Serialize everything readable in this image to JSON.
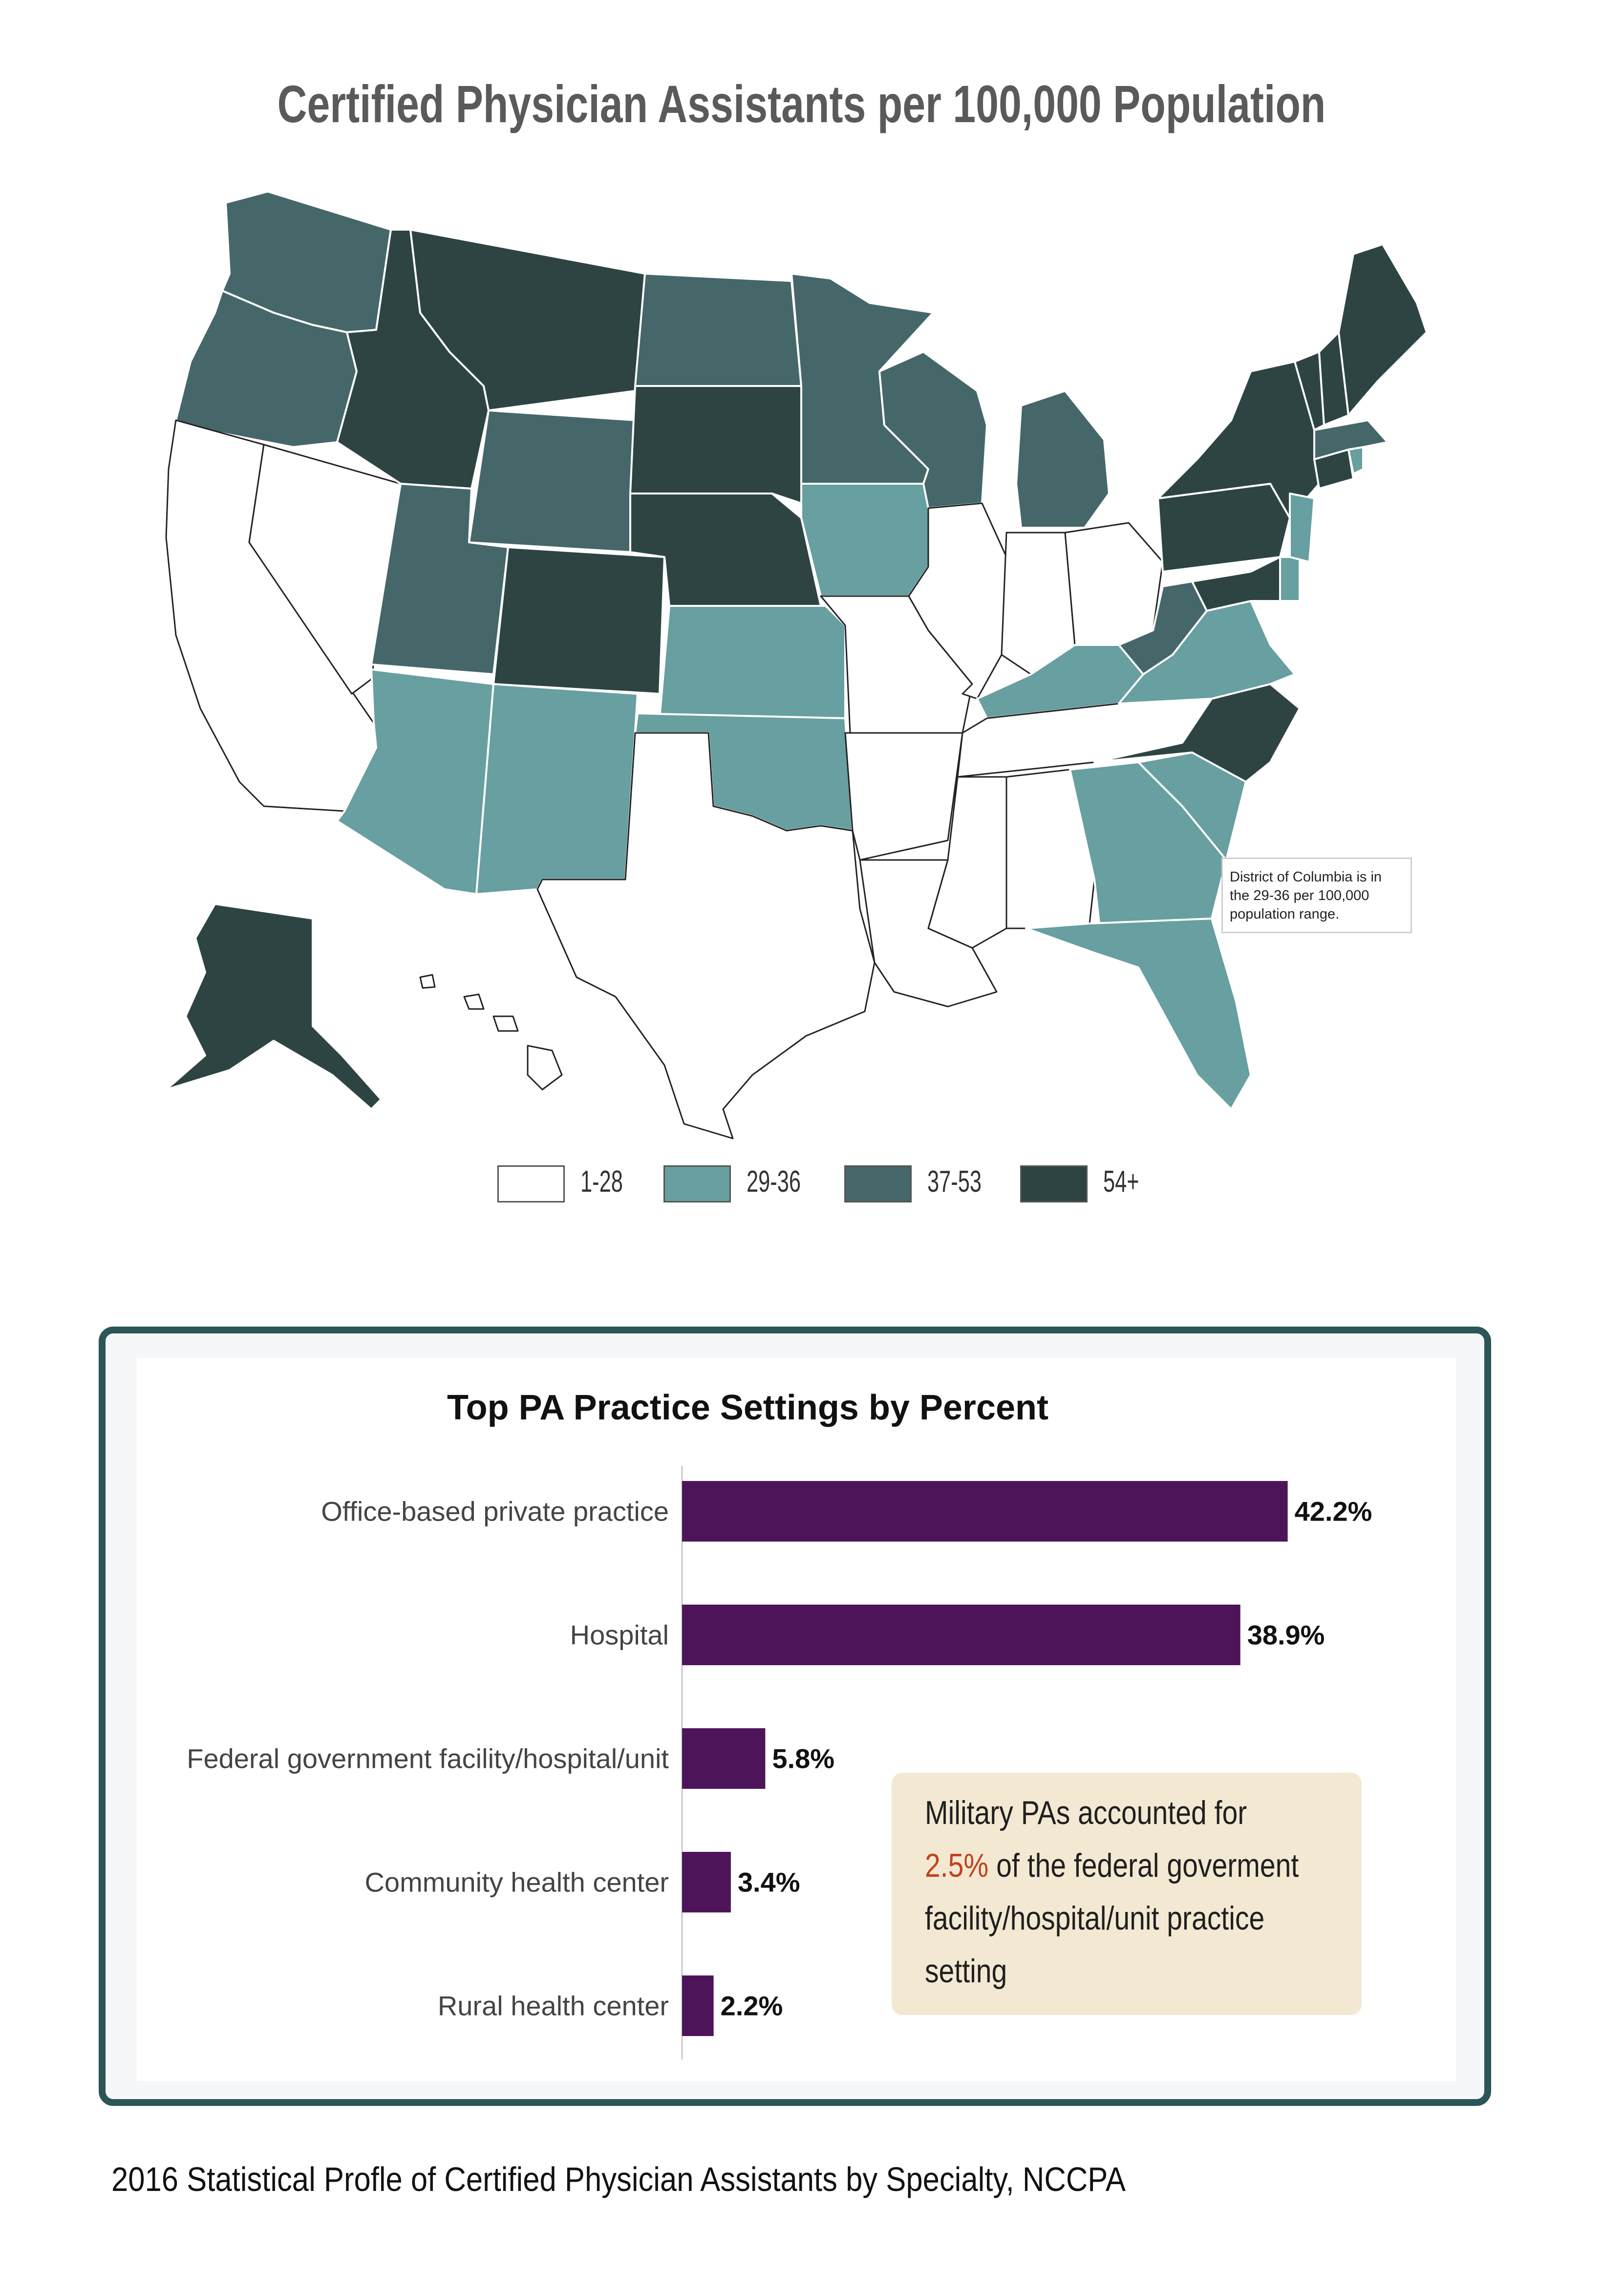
{
  "map": {
    "title": "Certified Physician Assistants per 100,000 Population",
    "dc_note": "District of Columbia is in the 29-36 per 100,000 population range.",
    "legend": [
      {
        "label": "1-28",
        "color": "#ffffff"
      },
      {
        "label": "29-36",
        "color": "#689fa0"
      },
      {
        "label": "37-53",
        "color": "#466769"
      },
      {
        "label": "54+",
        "color": "#2d4443"
      }
    ],
    "state_ranges": {
      "1-28": [
        "California",
        "Nevada",
        "Texas",
        "Missouri",
        "Arkansas",
        "Louisiana",
        "Mississippi",
        "Alabama",
        "Tennessee",
        "Illinois",
        "Indiana",
        "Ohio",
        "Hawaii"
      ],
      "29-36": [
        "Arizona",
        "New Mexico",
        "Kansas",
        "Oklahoma",
        "Iowa",
        "Kentucky",
        "Virginia",
        "Georgia",
        "South Carolina",
        "Florida",
        "New Jersey",
        "Delaware",
        "Rhode Island",
        "District of Columbia"
      ],
      "37-53": [
        "Washington",
        "Oregon",
        "Utah",
        "Wyoming",
        "North Dakota",
        "Minnesota",
        "Wisconsin",
        "Michigan",
        "West Virginia",
        "Massachusetts"
      ],
      "54+": [
        "Idaho",
        "Montana",
        "Colorado",
        "South Dakota",
        "Nebraska",
        "Alaska",
        "New York",
        "Pennsylvania",
        "Maryland",
        "North Carolina",
        "Maine",
        "New Hampshire",
        "Vermont",
        "Connecticut"
      ]
    }
  },
  "chart_data": {
    "type": "bar",
    "orientation": "horizontal",
    "title": "Top PA Practice Settings by Percent",
    "categories": [
      "Office-based private practice",
      "Hospital",
      "Federal government facility/hospital/unit",
      "Community health center",
      "Rural health center"
    ],
    "values": [
      42.2,
      38.9,
      5.8,
      3.4,
      2.2
    ],
    "value_labels": [
      "42.2%",
      "38.9%",
      "5.8%",
      "3.4%",
      "2.2%"
    ],
    "unit": "%",
    "xlim": [
      0,
      48
    ],
    "bar_color": "#4e1459",
    "grid": false,
    "legend": "none"
  },
  "callout": {
    "line1": "Military PAs accounted for",
    "highlight": "2.5%",
    "line2_rest": " of the federal goverment",
    "line3": "facility/hospital/unit practice",
    "line4": "setting"
  },
  "source_note": "2016 Statistical Profle of Certified Physician Assistants by Specialty, NCCPA"
}
